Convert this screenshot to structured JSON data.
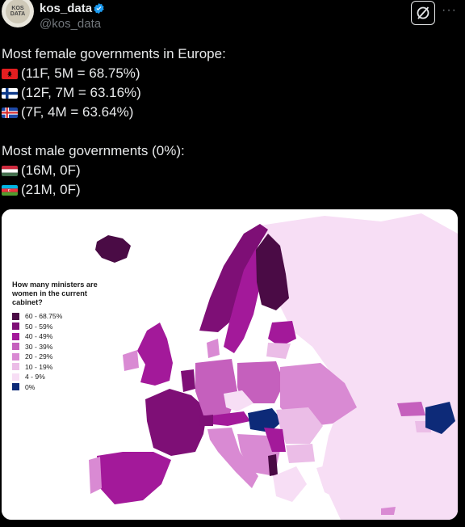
{
  "header": {
    "display_name": "kos_data",
    "handle": "@kos_data",
    "avatar_text": "KOS\nDATA",
    "more_label": "···"
  },
  "tweet": {
    "line1": "Most female governments in Europe:",
    "line2": "(11F, 5M = 68.75%)",
    "line3": "(12F, 7M = 63.16%)",
    "line4": "(7F, 4M = 63.64%)",
    "line5": "Most male governments (0%):",
    "line6": "(16M, 0F)",
    "line7": "(21M, 0F)"
  },
  "map": {
    "legend_title": "How many ministers are women in the current cabinet?",
    "legend": [
      {
        "label": "60 - 68.75%",
        "color": "#4a0b45"
      },
      {
        "label": "50 - 59%",
        "color": "#7e0f76"
      },
      {
        "label": "40 - 49%",
        "color": "#a3199a"
      },
      {
        "label": "30 - 39%",
        "color": "#c560bd"
      },
      {
        "label": "20 - 29%",
        "color": "#d98ad3"
      },
      {
        "label": "10 - 19%",
        "color": "#ebbde7"
      },
      {
        "label": "4 - 9%",
        "color": "#f7def5"
      },
      {
        "label": "0%",
        "color": "#0d2a78"
      }
    ]
  },
  "colors": {
    "background": "#000000",
    "text": "#e7e9ea",
    "muted": "#71767b",
    "verified": "#1d9bf0"
  }
}
